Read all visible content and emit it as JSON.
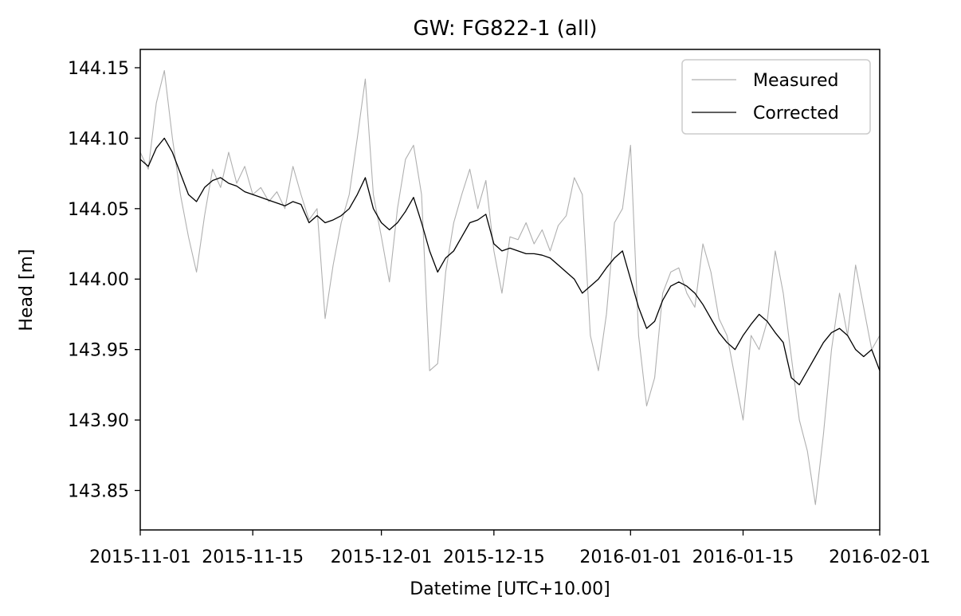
{
  "chart_data": {
    "type": "line",
    "title": "GW: FG822-1 (all)",
    "xlabel": "Datetime [UTC+10.00]",
    "ylabel": "Head [m]",
    "xlim": [
      "2015-11-01",
      "2016-02-01"
    ],
    "ylim": [
      143.822,
      144.163
    ],
    "x_ticks": [
      "2015-11-01",
      "2015-11-15",
      "2015-12-01",
      "2015-12-15",
      "2016-01-01",
      "2016-01-15",
      "2016-02-01"
    ],
    "y_ticks": [
      "143.85",
      "143.90",
      "143.95",
      "144.00",
      "144.05",
      "144.10",
      "144.15"
    ],
    "grid": false,
    "legend_position": "upper right",
    "series": [
      {
        "name": "Measured",
        "color": "#b0b0b0",
        "x": [
          "2015-11-01",
          "2015-11-02",
          "2015-11-03",
          "2015-11-04",
          "2015-11-05",
          "2015-11-06",
          "2015-11-07",
          "2015-11-08",
          "2015-11-09",
          "2015-11-10",
          "2015-11-11",
          "2015-11-12",
          "2015-11-13",
          "2015-11-14",
          "2015-11-15",
          "2015-11-16",
          "2015-11-17",
          "2015-11-18",
          "2015-11-19",
          "2015-11-20",
          "2015-11-21",
          "2015-11-22",
          "2015-11-23",
          "2015-11-24",
          "2015-11-25",
          "2015-11-26",
          "2015-11-27",
          "2015-11-28",
          "2015-11-29",
          "2015-11-30",
          "2015-12-01",
          "2015-12-02",
          "2015-12-03",
          "2015-12-04",
          "2015-12-05",
          "2015-12-06",
          "2015-12-07",
          "2015-12-08",
          "2015-12-09",
          "2015-12-10",
          "2015-12-11",
          "2015-12-12",
          "2015-12-13",
          "2015-12-14",
          "2015-12-15",
          "2015-12-16",
          "2015-12-17",
          "2015-12-18",
          "2015-12-19",
          "2015-12-20",
          "2015-12-21",
          "2015-12-22",
          "2015-12-23",
          "2015-12-24",
          "2015-12-25",
          "2015-12-26",
          "2015-12-27",
          "2015-12-28",
          "2015-12-29",
          "2015-12-30",
          "2015-12-31",
          "2016-01-01",
          "2016-01-02",
          "2016-01-03",
          "2016-01-04",
          "2016-01-05",
          "2016-01-06",
          "2016-01-07",
          "2016-01-08",
          "2016-01-09",
          "2016-01-10",
          "2016-01-11",
          "2016-01-12",
          "2016-01-13",
          "2016-01-14",
          "2016-01-15",
          "2016-01-16",
          "2016-01-17",
          "2016-01-18",
          "2016-01-19",
          "2016-01-20",
          "2016-01-21",
          "2016-01-22",
          "2016-01-23",
          "2016-01-24",
          "2016-01-25",
          "2016-01-26",
          "2016-01-27",
          "2016-01-28",
          "2016-01-29",
          "2016-01-30",
          "2016-01-31",
          "2016-02-01"
        ],
        "values": [
          144.09,
          144.078,
          144.125,
          144.148,
          144.1,
          144.06,
          144.03,
          144.005,
          144.045,
          144.078,
          144.065,
          144.09,
          144.068,
          144.08,
          144.06,
          144.065,
          144.055,
          144.062,
          144.05,
          144.08,
          144.06,
          144.042,
          144.05,
          143.972,
          144.01,
          144.04,
          144.06,
          144.1,
          144.142,
          144.06,
          144.03,
          143.998,
          144.05,
          144.085,
          144.095,
          144.06,
          143.935,
          143.94,
          144.005,
          144.04,
          144.06,
          144.078,
          144.05,
          144.07,
          144.02,
          143.99,
          144.03,
          144.028,
          144.04,
          144.025,
          144.035,
          144.02,
          144.038,
          144.045,
          144.072,
          144.06,
          143.96,
          143.935,
          143.975,
          144.04,
          144.05,
          144.095,
          143.96,
          143.91,
          143.93,
          143.99,
          144.005,
          144.008,
          143.99,
          143.98,
          144.025,
          144.005,
          143.972,
          143.96,
          143.93,
          143.9,
          143.96,
          143.95,
          143.97,
          144.02,
          143.99,
          143.945,
          143.9,
          143.878,
          143.84,
          143.89,
          143.95,
          143.99,
          143.96,
          144.01,
          143.98,
          143.95,
          143.96
        ]
      },
      {
        "name": "Corrected",
        "color": "#000000",
        "x": [
          "2015-11-01",
          "2015-11-02",
          "2015-11-03",
          "2015-11-04",
          "2015-11-05",
          "2015-11-06",
          "2015-11-07",
          "2015-11-08",
          "2015-11-09",
          "2015-11-10",
          "2015-11-11",
          "2015-11-12",
          "2015-11-13",
          "2015-11-14",
          "2015-11-15",
          "2015-11-16",
          "2015-11-17",
          "2015-11-18",
          "2015-11-19",
          "2015-11-20",
          "2015-11-21",
          "2015-11-22",
          "2015-11-23",
          "2015-11-24",
          "2015-11-25",
          "2015-11-26",
          "2015-11-27",
          "2015-11-28",
          "2015-11-29",
          "2015-11-30",
          "2015-12-01",
          "2015-12-02",
          "2015-12-03",
          "2015-12-04",
          "2015-12-05",
          "2015-12-06",
          "2015-12-07",
          "2015-12-08",
          "2015-12-09",
          "2015-12-10",
          "2015-12-11",
          "2015-12-12",
          "2015-12-13",
          "2015-12-14",
          "2015-12-15",
          "2015-12-16",
          "2015-12-17",
          "2015-12-18",
          "2015-12-19",
          "2015-12-20",
          "2015-12-21",
          "2015-12-22",
          "2015-12-23",
          "2015-12-24",
          "2015-12-25",
          "2015-12-26",
          "2015-12-27",
          "2015-12-28",
          "2015-12-29",
          "2015-12-30",
          "2015-12-31",
          "2016-01-01",
          "2016-01-02",
          "2016-01-03",
          "2016-01-04",
          "2016-01-05",
          "2016-01-06",
          "2016-01-07",
          "2016-01-08",
          "2016-01-09",
          "2016-01-10",
          "2016-01-11",
          "2016-01-12",
          "2016-01-13",
          "2016-01-14",
          "2016-01-15",
          "2016-01-16",
          "2016-01-17",
          "2016-01-18",
          "2016-01-19",
          "2016-01-20",
          "2016-01-21",
          "2016-01-22",
          "2016-01-23",
          "2016-01-24",
          "2016-01-25",
          "2016-01-26",
          "2016-01-27",
          "2016-01-28",
          "2016-01-29",
          "2016-01-30",
          "2016-01-31",
          "2016-02-01"
        ],
        "values": [
          144.085,
          144.08,
          144.093,
          144.1,
          144.09,
          144.075,
          144.06,
          144.055,
          144.065,
          144.07,
          144.072,
          144.068,
          144.066,
          144.062,
          144.06,
          144.058,
          144.056,
          144.054,
          144.052,
          144.055,
          144.053,
          144.04,
          144.045,
          144.04,
          144.042,
          144.045,
          144.05,
          144.06,
          144.072,
          144.05,
          144.04,
          144.035,
          144.04,
          144.048,
          144.058,
          144.04,
          144.02,
          144.005,
          144.015,
          144.02,
          144.03,
          144.04,
          144.042,
          144.046,
          144.025,
          144.02,
          144.022,
          144.02,
          144.018,
          144.018,
          144.017,
          144.015,
          144.01,
          144.005,
          144.0,
          143.99,
          143.995,
          144.0,
          144.008,
          144.015,
          144.02,
          144.0,
          143.98,
          143.965,
          143.97,
          143.985,
          143.995,
          143.998,
          143.995,
          143.99,
          143.982,
          143.972,
          143.962,
          143.955,
          143.95,
          143.96,
          143.968,
          143.975,
          143.97,
          143.962,
          143.955,
          143.93,
          143.925,
          143.935,
          143.945,
          143.955,
          143.962,
          143.965,
          143.96,
          143.95,
          143.945,
          143.95,
          143.935
        ]
      }
    ]
  }
}
